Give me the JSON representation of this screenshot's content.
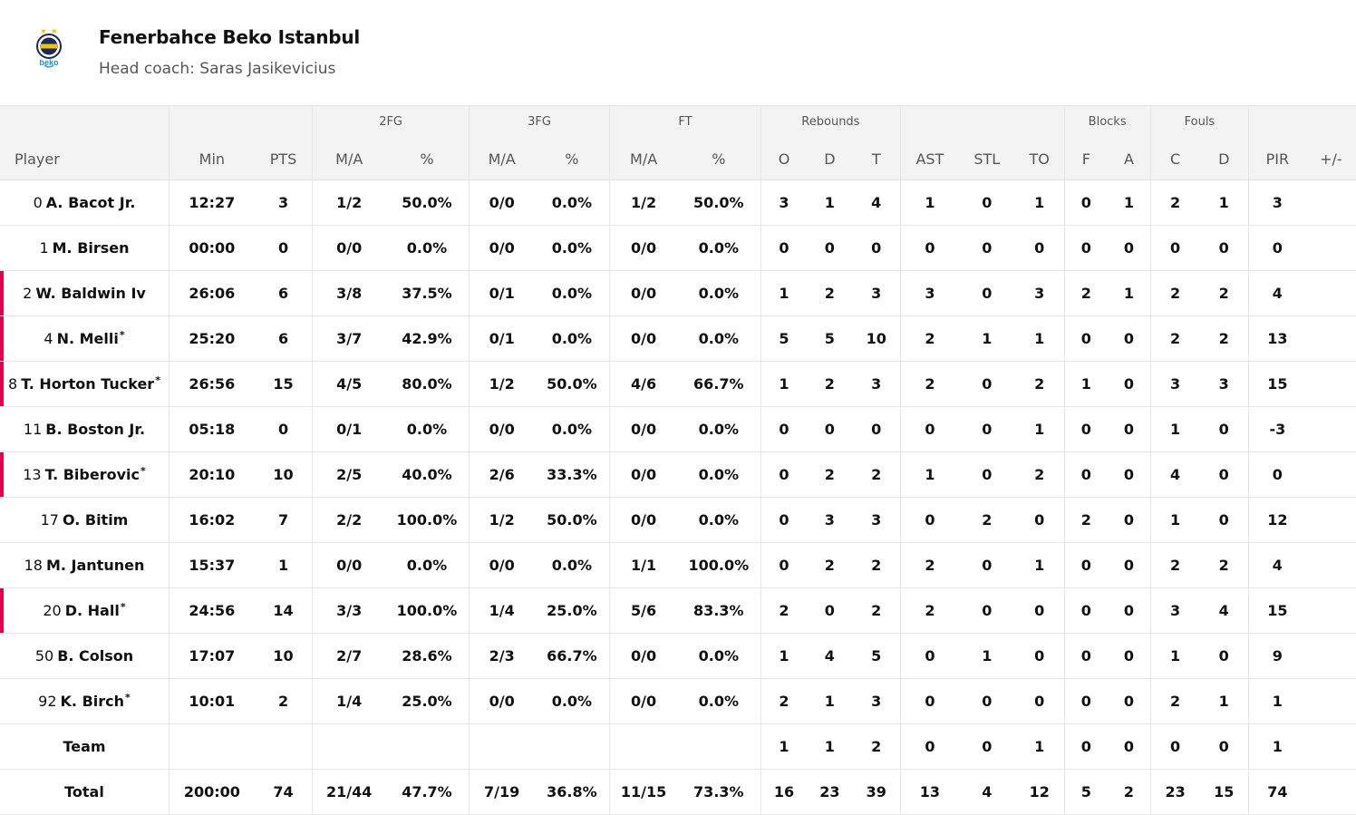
{
  "team": {
    "name": "Fenerbahce Beko Istanbul",
    "coach": "Head coach: Saras Jasikevicius",
    "logo_text": "beko"
  },
  "colors": {
    "accent": "#e0004d",
    "header_bg": "#f3f3f3",
    "logo_navy": "#1b2a5e",
    "logo_yellow": "#f5c400",
    "logo_blue": "#1793d1"
  },
  "group_headers": [
    "2FG",
    "3FG",
    "FT",
    "Rebounds",
    "Blocks",
    "Fouls"
  ],
  "columns": [
    "Player",
    "Min",
    "PTS",
    "M/A",
    "%",
    "M/A",
    "%",
    "M/A",
    "%",
    "O",
    "D",
    "T",
    "AST",
    "STL",
    "TO",
    "F",
    "A",
    "C",
    "D",
    "PIR",
    "+/-"
  ],
  "players": [
    {
      "num": "0",
      "name": "A. Bacot Jr.",
      "star": false,
      "starter": false,
      "stats": [
        "12:27",
        "3",
        "1/2",
        "50.0%",
        "0/0",
        "0.0%",
        "1/2",
        "50.0%",
        "3",
        "1",
        "4",
        "1",
        "0",
        "1",
        "0",
        "1",
        "2",
        "1",
        "3",
        ""
      ]
    },
    {
      "num": "1",
      "name": "M. Birsen",
      "star": false,
      "starter": false,
      "stats": [
        "00:00",
        "0",
        "0/0",
        "0.0%",
        "0/0",
        "0.0%",
        "0/0",
        "0.0%",
        "0",
        "0",
        "0",
        "0",
        "0",
        "0",
        "0",
        "0",
        "0",
        "0",
        "0",
        ""
      ]
    },
    {
      "num": "2",
      "name": "W. Baldwin Iv",
      "star": false,
      "starter": true,
      "stats": [
        "26:06",
        "6",
        "3/8",
        "37.5%",
        "0/1",
        "0.0%",
        "0/0",
        "0.0%",
        "1",
        "2",
        "3",
        "3",
        "0",
        "3",
        "2",
        "1",
        "2",
        "2",
        "4",
        ""
      ]
    },
    {
      "num": "4",
      "name": "N. Melli",
      "star": true,
      "starter": true,
      "stats": [
        "25:20",
        "6",
        "3/7",
        "42.9%",
        "0/1",
        "0.0%",
        "0/0",
        "0.0%",
        "5",
        "5",
        "10",
        "2",
        "1",
        "1",
        "0",
        "0",
        "2",
        "2",
        "13",
        ""
      ]
    },
    {
      "num": "8",
      "name": "T. Horton Tucker",
      "star": true,
      "starter": true,
      "stats": [
        "26:56",
        "15",
        "4/5",
        "80.0%",
        "1/2",
        "50.0%",
        "4/6",
        "66.7%",
        "1",
        "2",
        "3",
        "2",
        "0",
        "2",
        "1",
        "0",
        "3",
        "3",
        "15",
        ""
      ]
    },
    {
      "num": "11",
      "name": "B. Boston Jr.",
      "star": false,
      "starter": false,
      "stats": [
        "05:18",
        "0",
        "0/1",
        "0.0%",
        "0/0",
        "0.0%",
        "0/0",
        "0.0%",
        "0",
        "0",
        "0",
        "0",
        "0",
        "1",
        "0",
        "0",
        "1",
        "0",
        "-3",
        ""
      ]
    },
    {
      "num": "13",
      "name": "T. Biberovic",
      "star": true,
      "starter": true,
      "stats": [
        "20:10",
        "10",
        "2/5",
        "40.0%",
        "2/6",
        "33.3%",
        "0/0",
        "0.0%",
        "0",
        "2",
        "2",
        "1",
        "0",
        "2",
        "0",
        "0",
        "4",
        "0",
        "0",
        ""
      ]
    },
    {
      "num": "17",
      "name": "O. Bitim",
      "star": false,
      "starter": false,
      "stats": [
        "16:02",
        "7",
        "2/2",
        "100.0%",
        "1/2",
        "50.0%",
        "0/0",
        "0.0%",
        "0",
        "3",
        "3",
        "0",
        "2",
        "0",
        "2",
        "0",
        "1",
        "0",
        "12",
        ""
      ]
    },
    {
      "num": "18",
      "name": "M. Jantunen",
      "star": false,
      "starter": false,
      "stats": [
        "15:37",
        "1",
        "0/0",
        "0.0%",
        "0/0",
        "0.0%",
        "1/1",
        "100.0%",
        "0",
        "2",
        "2",
        "2",
        "0",
        "1",
        "0",
        "0",
        "2",
        "2",
        "4",
        ""
      ]
    },
    {
      "num": "20",
      "name": "D. Hall",
      "star": true,
      "starter": true,
      "stats": [
        "24:56",
        "14",
        "3/3",
        "100.0%",
        "1/4",
        "25.0%",
        "5/6",
        "83.3%",
        "2",
        "0",
        "2",
        "2",
        "0",
        "0",
        "0",
        "0",
        "3",
        "4",
        "15",
        ""
      ]
    },
    {
      "num": "50",
      "name": "B. Colson",
      "star": false,
      "starter": false,
      "stats": [
        "17:07",
        "10",
        "2/7",
        "28.6%",
        "2/3",
        "66.7%",
        "0/0",
        "0.0%",
        "1",
        "4",
        "5",
        "0",
        "1",
        "0",
        "0",
        "0",
        "1",
        "0",
        "9",
        ""
      ]
    },
    {
      "num": "92",
      "name": "K. Birch",
      "star": true,
      "starter": false,
      "stats": [
        "10:01",
        "2",
        "1/4",
        "25.0%",
        "0/0",
        "0.0%",
        "0/0",
        "0.0%",
        "2",
        "1",
        "3",
        "0",
        "0",
        "0",
        "0",
        "0",
        "2",
        "1",
        "1",
        ""
      ]
    }
  ],
  "team_row": {
    "label": "Team",
    "stats": [
      "",
      "",
      "",
      "",
      "",
      "",
      "",
      "",
      "1",
      "1",
      "2",
      "0",
      "0",
      "1",
      "0",
      "0",
      "0",
      "0",
      "1",
      ""
    ]
  },
  "total_row": {
    "label": "Total",
    "stats": [
      "200:00",
      "74",
      "21/44",
      "47.7%",
      "7/19",
      "36.8%",
      "11/15",
      "73.3%",
      "16",
      "23",
      "39",
      "13",
      "4",
      "12",
      "5",
      "2",
      "23",
      "15",
      "74",
      ""
    ]
  }
}
